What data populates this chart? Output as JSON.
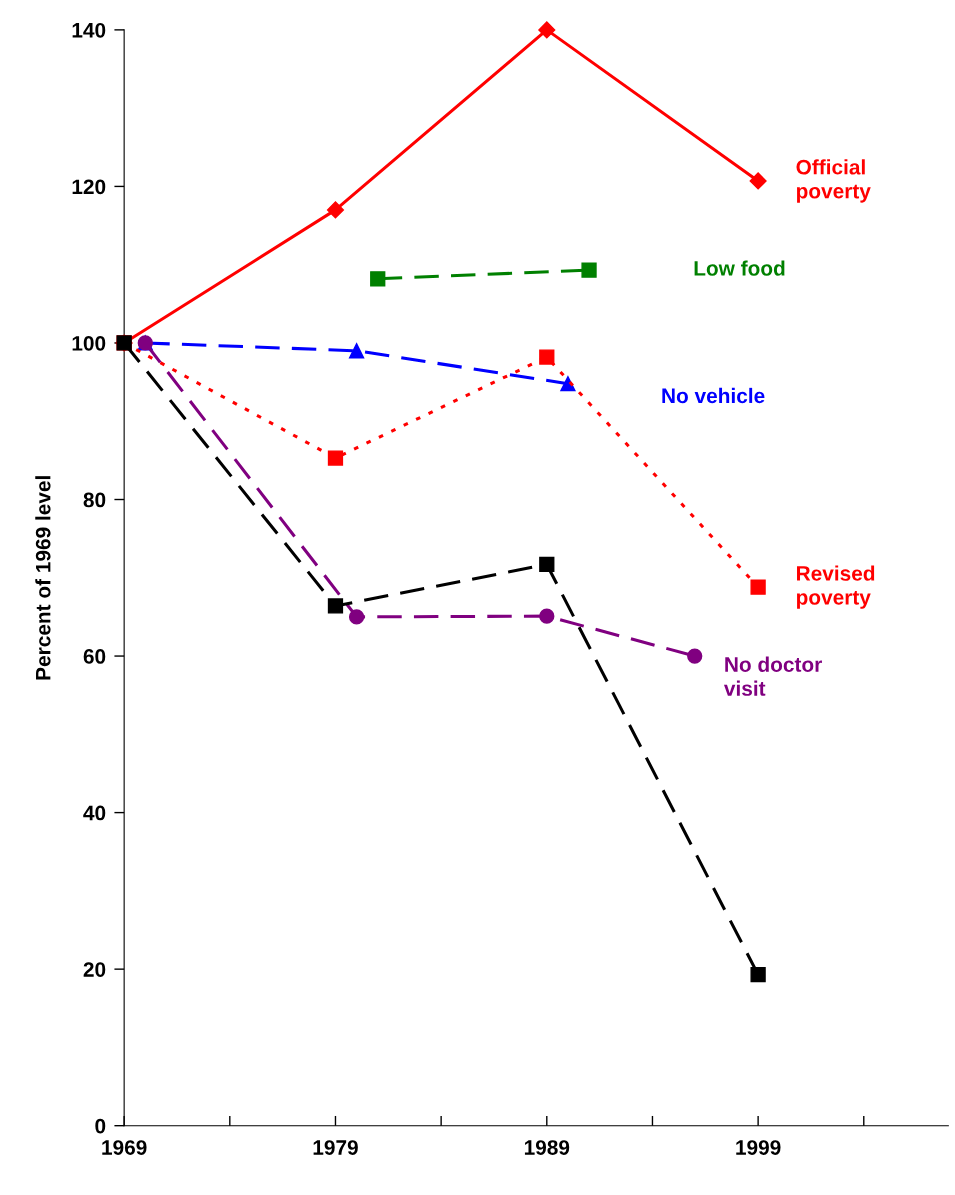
{
  "chart_data": {
    "type": "line",
    "ylabel": "Percent of 1969 level",
    "xlim": [
      1969,
      2008
    ],
    "xticks": [
      1969,
      {
        "value": 1974,
        "label": null
      },
      1979,
      {
        "value": 1984,
        "label": null
      },
      1989,
      {
        "value": 1994,
        "label": null
      },
      1999,
      {
        "value": 2004,
        "label": null
      }
    ],
    "ylim": [
      0,
      140
    ],
    "yticks": [
      0,
      20,
      40,
      60,
      80,
      100,
      120,
      140
    ],
    "grid": false,
    "legend": false,
    "series": [
      {
        "name": "Official\npoverty",
        "color": "#ff0000",
        "marker": "diamond",
        "line_style": "solid",
        "x": [
          1969,
          1979,
          1989,
          1999
        ],
        "values": [
          100,
          117,
          140,
          120.7
        ]
      },
      {
        "name": "Low food",
        "color": "#008000",
        "marker": "square",
        "line_style": "dashed",
        "x": [
          1981,
          1991
        ],
        "values": [
          108.2,
          109.3
        ]
      },
      {
        "name": "No vehicle",
        "color": "#0000ff",
        "marker": "triangle",
        "line_style": "dashed",
        "x": [
          1970,
          1980,
          1990
        ],
        "values": [
          100,
          99,
          94.8
        ]
      },
      {
        "name": "Revised\npoverty",
        "color": "#ff0000",
        "marker": "square",
        "line_style": "dotted",
        "x": [
          1969,
          1979,
          1989,
          1999
        ],
        "values": [
          100,
          85.3,
          98.2,
          68.8
        ]
      },
      {
        "name": "No doctor\nvisit",
        "color": "#800080",
        "marker": "circle",
        "line_style": "dashed",
        "x": [
          1970,
          1980,
          1989,
          1996
        ],
        "values": [
          100,
          65,
          65.1,
          60
        ]
      },
      {
        "color": "#000000",
        "marker": "square",
        "line_style": "dashed",
        "x": [
          1969,
          1979,
          1989,
          1999
        ],
        "values": [
          100,
          66.4,
          71.7,
          19.3
        ]
      }
    ]
  }
}
